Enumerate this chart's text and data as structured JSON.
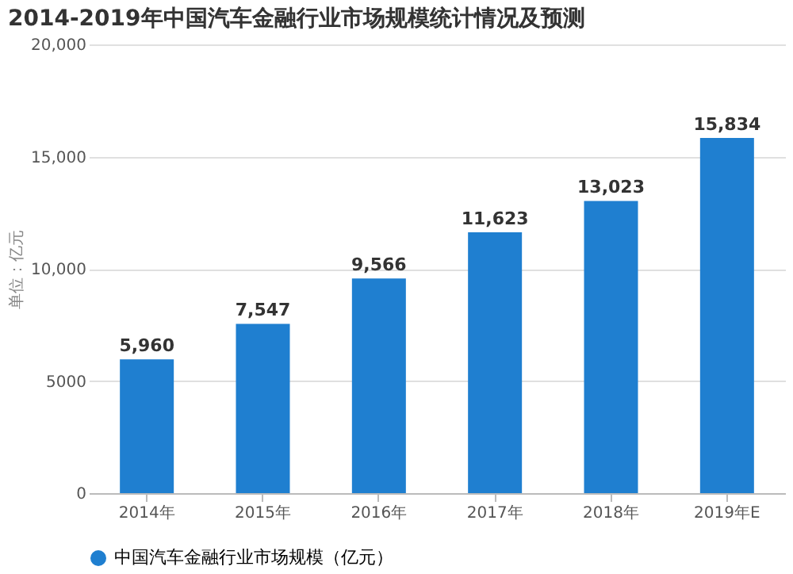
{
  "chart_data": {
    "type": "bar",
    "title": "2014-2019年中国汽车金融行业市场规模统计情况及预测",
    "ylabel": "单位：亿元",
    "categories": [
      "2014年",
      "2015年",
      "2016年",
      "2017年",
      "2018年",
      "2019年E"
    ],
    "series": [
      {
        "name": "中国汽车金融行业市场规模（亿元）",
        "color": "#1f7fd0",
        "values": [
          5960,
          7547,
          9566,
          11623,
          13023,
          15834
        ]
      }
    ],
    "ylim": [
      0,
      20000
    ],
    "yticks": [
      0,
      5000,
      {
        "value": 10000,
        "label": "10,000"
      },
      {
        "value": 15000,
        "label": "15,000"
      },
      {
        "value": 20000,
        "label": "20,000"
      }
    ],
    "value_labels": [
      "5,960",
      "7,547",
      "9,566",
      "11,623",
      "13,023",
      "15,834"
    ],
    "grid": "y",
    "legend": "bottom"
  }
}
